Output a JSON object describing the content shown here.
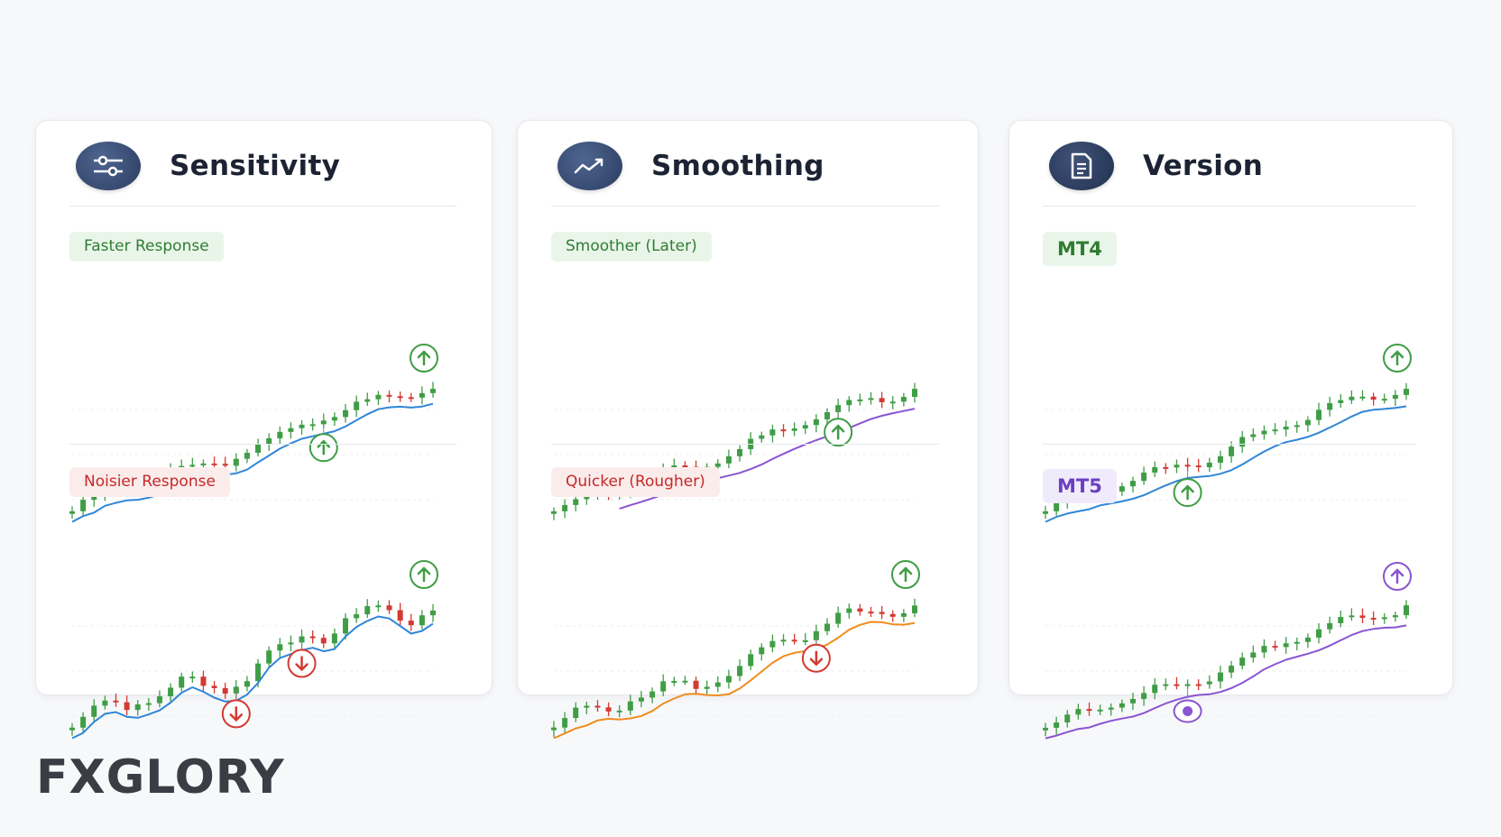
{
  "logo": "FXGLORY",
  "colors": {
    "bull": "#3f9d45",
    "bear": "#d33a32",
    "blue": "#2f86d6",
    "purple": "#8a55d0",
    "orange": "#f08c1e"
  },
  "cards": [
    {
      "title": "Sensitivity",
      "icon": "sliders-icon",
      "panels": [
        {
          "tag": "Faster Response",
          "tag_color": "green"
        },
        {
          "tag": "Noisier Response",
          "tag_color": "red"
        }
      ]
    },
    {
      "title": "Smoothing",
      "icon": "trend-line-icon",
      "panels": [
        {
          "tag": "Smoother (Later)",
          "tag_color": "green"
        },
        {
          "tag": "Quicker (Rougher)",
          "tag_color": "red"
        }
      ]
    },
    {
      "title": "Version",
      "icon": "document-icon",
      "panels": [
        {
          "tag": "MT4",
          "tag_color": "green"
        },
        {
          "tag": "MT5",
          "tag_color": "purple"
        }
      ]
    }
  ],
  "chart_data": [
    {
      "type": "candlestick",
      "name": "sensitivity-fast",
      "line_color": "blue",
      "line_lag": 2,
      "volatility": 1.0,
      "seed": 3,
      "signals": [
        {
          "i": 23,
          "dir": "up"
        }
      ],
      "end_signal": "up"
    },
    {
      "type": "candlestick",
      "name": "sensitivity-noisy",
      "line_color": "blue",
      "line_lag": 1,
      "volatility": 2.2,
      "seed": 7,
      "signals": [
        {
          "i": 15,
          "dir": "down"
        },
        {
          "i": 21,
          "dir": "down"
        }
      ],
      "end_signal": "up"
    },
    {
      "type": "candlestick",
      "name": "smoothing-smooth",
      "line_color": "purple",
      "line_lag": 6,
      "volatility": 1.0,
      "seed": 11,
      "signals": [
        {
          "i": 26,
          "dir": "up"
        }
      ],
      "end_signal": "none"
    },
    {
      "type": "candlestick",
      "name": "smoothing-quick",
      "line_color": "orange",
      "line_lag": 3,
      "volatility": 1.6,
      "seed": 5,
      "signals": [
        {
          "i": 24,
          "dir": "down"
        }
      ],
      "end_signal": "up"
    },
    {
      "type": "candlestick",
      "name": "version-mt4",
      "line_color": "blue",
      "line_lag": 4,
      "volatility": 1.0,
      "seed": 13,
      "signals": [
        {
          "i": 13,
          "dir": "up"
        }
      ],
      "end_signal": "up"
    },
    {
      "type": "candlestick",
      "name": "version-mt5",
      "line_color": "purple",
      "line_lag": 4,
      "volatility": 1.0,
      "seed": 17,
      "signals": [
        {
          "i": 13,
          "dir": "dot"
        }
      ],
      "end_signal": "up-purple"
    }
  ]
}
